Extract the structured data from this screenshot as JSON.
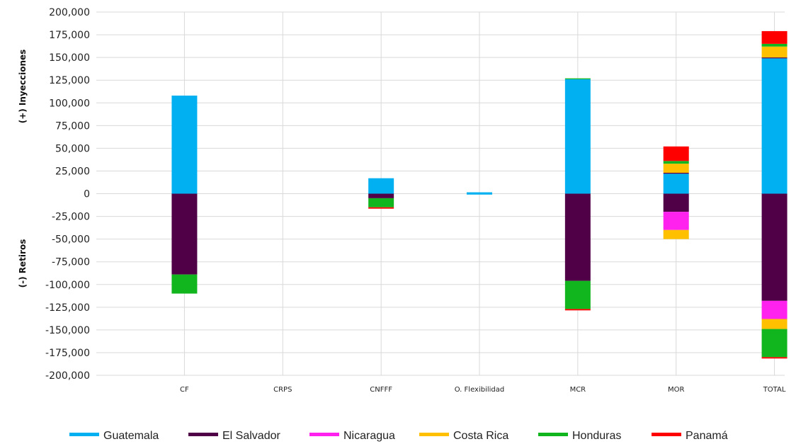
{
  "chart_data": {
    "type": "bar",
    "stacked": true,
    "categories": [
      "CF",
      "CRPS",
      "CNFFF",
      "O. Flexibilidad",
      "MCR",
      "MOR",
      "TOTAL"
    ],
    "ylabel_positive": "(+) Inyecciones",
    "ylabel_negative": "(-) Retiros",
    "ylim": [
      -200000,
      200000
    ],
    "yticks": [
      "200,000",
      "175,000",
      "150,000",
      "125,000",
      "100,000",
      "75,000",
      "50,000",
      "25,000",
      "0",
      "-25,000",
      "-50,000",
      "-75,000",
      "-100,000",
      "-125,000",
      "-150,000",
      "-175,000",
      "-200,000"
    ],
    "grid": true,
    "legend_position": "bottom",
    "series": [
      {
        "name": "Guatemala",
        "color": "#00b0f0",
        "values": [
          [
            108000,
            0
          ],
          [
            0,
            0
          ],
          [
            17000,
            0
          ],
          [
            1500,
            -1000
          ],
          [
            126000,
            0
          ],
          [
            22000,
            0
          ],
          [
            149000,
            0
          ]
        ]
      },
      {
        "name": "El Salvador",
        "color": "#4f0046",
        "values": [
          [
            0,
            -89000
          ],
          [
            0,
            0
          ],
          [
            0,
            -5000
          ],
          [
            0,
            0
          ],
          [
            0,
            -96000
          ],
          [
            1000,
            -20000
          ],
          [
            1000,
            -118000
          ]
        ]
      },
      {
        "name": "Nicaragua",
        "color": "#ff22ee",
        "values": [
          [
            0,
            0
          ],
          [
            0,
            0
          ],
          [
            0,
            0
          ],
          [
            0,
            0
          ],
          [
            0,
            0
          ],
          [
            0,
            -20000
          ],
          [
            0,
            -20000
          ]
        ]
      },
      {
        "name": "Costa Rica",
        "color": "#ffc000",
        "values": [
          [
            0,
            0
          ],
          [
            0,
            0
          ],
          [
            0,
            0
          ],
          [
            0,
            0
          ],
          [
            0,
            0
          ],
          [
            10000,
            -10000
          ],
          [
            12000,
            -11000
          ]
        ]
      },
      {
        "name": "Honduras",
        "color": "#11b51e",
        "values": [
          [
            0,
            -21000
          ],
          [
            0,
            0
          ],
          [
            0,
            -10000
          ],
          [
            0,
            0
          ],
          [
            1000,
            -31000
          ],
          [
            3000,
            0
          ],
          [
            3000,
            -31000
          ]
        ]
      },
      {
        "name": "Panamá",
        "color": "#ff0000",
        "values": [
          [
            0,
            0
          ],
          [
            0,
            0
          ],
          [
            0,
            -1500
          ],
          [
            0,
            0
          ],
          [
            0,
            -1500
          ],
          [
            16000,
            0
          ],
          [
            14000,
            -1500
          ]
        ]
      }
    ]
  }
}
